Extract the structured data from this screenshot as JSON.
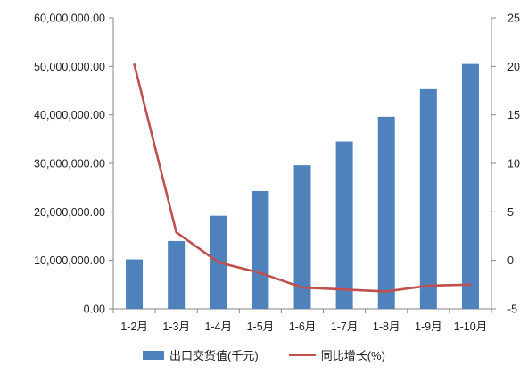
{
  "chart_data": {
    "type": "bar",
    "categories": [
      "1-2月",
      "1-3月",
      "1-4月",
      "1-5月",
      "1-6月",
      "1-7月",
      "1-8月",
      "1-9月",
      "1-10月"
    ],
    "series": [
      {
        "name": "出口交货值(千元)",
        "type": "bar",
        "axis": "left",
        "color": "#4f81bd",
        "values": [
          10200000,
          14000000,
          19200000,
          24300000,
          29600000,
          34500000,
          39600000,
          45300000,
          50500000
        ]
      },
      {
        "name": "同比增长(%)",
        "type": "line",
        "axis": "right",
        "color": "#c0504d",
        "values": [
          20.2,
          2.9,
          -0.2,
          -1.3,
          -2.8,
          -3.0,
          -3.2,
          -2.6,
          -2.5
        ]
      }
    ],
    "y_left": {
      "min": 0,
      "max": 60000000,
      "ticks": [
        "0.00",
        "10,000,000.00",
        "20,000,000.00",
        "30,000,000.00",
        "40,000,000.00",
        "50,000,000.00",
        "60,000,000.00"
      ]
    },
    "y_right": {
      "min": -5,
      "max": 25,
      "ticks": [
        "-5",
        "0",
        "5",
        "10",
        "15",
        "20",
        "25"
      ]
    },
    "grid": false,
    "legend_position": "bottom"
  }
}
